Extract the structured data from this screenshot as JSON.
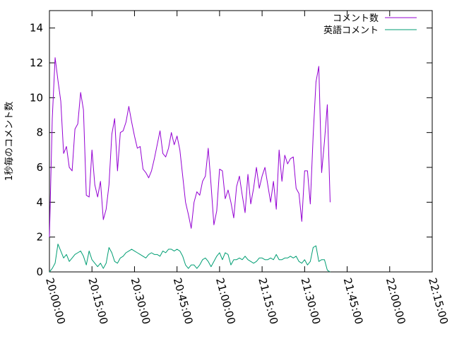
{
  "chart_data": {
    "type": "line",
    "title": "",
    "xlabel": "",
    "ylabel": "1秒毎のコメント数",
    "xlim_minutes": [
      0,
      135
    ],
    "ylim": [
      0,
      15
    ],
    "grid": false,
    "legend_position": "top-right",
    "x_ticks": [
      {
        "label": "20:00:00",
        "value": 0
      },
      {
        "label": "20:15:00",
        "value": 15
      },
      {
        "label": "20:30:00",
        "value": 30
      },
      {
        "label": "20:45:00",
        "value": 45
      },
      {
        "label": "21:00:00",
        "value": 60
      },
      {
        "label": "21:15:00",
        "value": 75
      },
      {
        "label": "21:30:00",
        "value": 90
      },
      {
        "label": "21:45:00",
        "value": 105
      },
      {
        "label": "22:00:00",
        "value": 120
      },
      {
        "label": "22:15:00",
        "value": 135
      }
    ],
    "y_ticks": [
      0,
      2,
      4,
      6,
      8,
      10,
      12,
      14
    ],
    "x_step_minutes": 1,
    "series": [
      {
        "name": "コメント数",
        "color": "#9400d3",
        "values": [
          2.0,
          8.8,
          12.3,
          11.0,
          9.8,
          6.8,
          7.2,
          6.0,
          5.8,
          8.2,
          8.5,
          10.3,
          9.3,
          4.4,
          4.3,
          7.0,
          5.0,
          4.3,
          5.2,
          3.0,
          3.6,
          5.0,
          7.9,
          8.8,
          5.8,
          8.0,
          8.1,
          8.6,
          9.5,
          8.6,
          7.8,
          7.1,
          7.2,
          5.9,
          5.7,
          5.4,
          5.8,
          6.5,
          7.3,
          8.1,
          6.8,
          6.6,
          7.1,
          8.0,
          7.3,
          7.8,
          7.0,
          5.5,
          4.0,
          3.3,
          2.5,
          4.0,
          4.6,
          4.4,
          5.2,
          5.5,
          7.1,
          5.0,
          2.7,
          3.5,
          5.9,
          5.8,
          4.2,
          4.7,
          4.0,
          3.1,
          4.9,
          5.5,
          4.4,
          3.4,
          5.6,
          3.9,
          4.8,
          6.0,
          4.8,
          5.5,
          6.0,
          5.0,
          4.0,
          5.2,
          3.6,
          7.0,
          5.2,
          6.7,
          6.2,
          6.5,
          6.6,
          4.8,
          4.5,
          2.9,
          5.8,
          5.8,
          3.9,
          7.8,
          10.9,
          11.8,
          5.7,
          7.5,
          9.6,
          4.0
        ],
        "note_x_start_minute": 0
      },
      {
        "name": "英語コメント",
        "color": "#009e73",
        "values": [
          0.0,
          0.2,
          0.5,
          1.6,
          1.2,
          0.8,
          1.0,
          0.6,
          0.8,
          1.0,
          1.1,
          1.2,
          0.9,
          0.4,
          1.2,
          0.7,
          0.5,
          0.3,
          0.5,
          0.2,
          0.5,
          1.4,
          1.1,
          0.6,
          0.5,
          0.8,
          0.9,
          1.1,
          1.2,
          1.3,
          1.2,
          1.1,
          1.0,
          0.9,
          0.8,
          1.0,
          1.1,
          1.0,
          1.0,
          0.9,
          1.2,
          1.1,
          1.3,
          1.3,
          1.2,
          1.3,
          1.2,
          0.9,
          0.4,
          0.2,
          0.4,
          0.4,
          0.2,
          0.4,
          0.7,
          0.8,
          0.6,
          0.3,
          0.6,
          0.9,
          1.1,
          0.7,
          1.1,
          1.0,
          0.4,
          0.7,
          0.7,
          0.8,
          0.7,
          0.9,
          0.7,
          0.6,
          0.5,
          0.6,
          0.8,
          0.8,
          0.7,
          0.7,
          0.8,
          0.7,
          1.0,
          0.7,
          0.7,
          0.8,
          0.8,
          0.9,
          0.8,
          0.9,
          0.6,
          0.5,
          0.7,
          0.4,
          0.6,
          1.4,
          1.5,
          0.6,
          0.7,
          0.7,
          0.1,
          0.0
        ]
      }
    ]
  }
}
